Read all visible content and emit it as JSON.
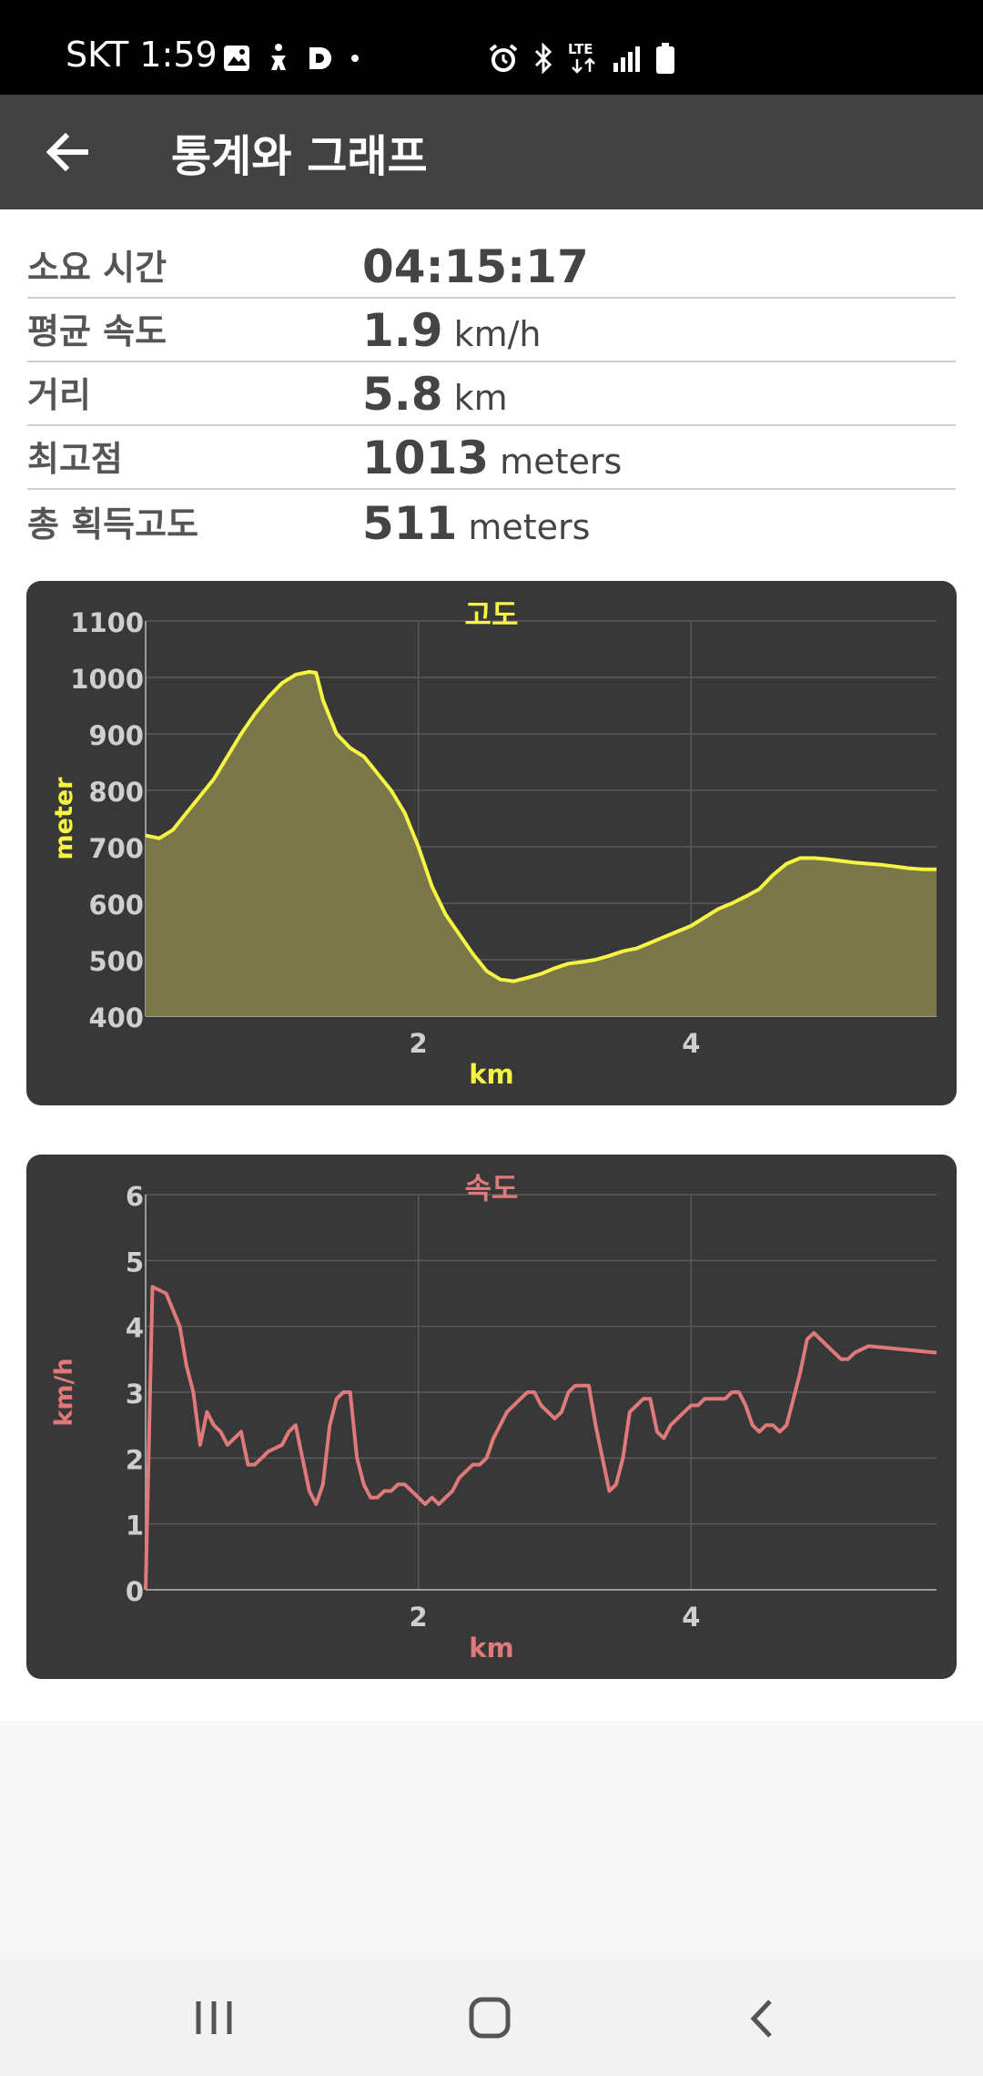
{
  "status_bar": {
    "time": "SKT 1:59",
    "lte": "LTE"
  },
  "app_bar": {
    "title": "통계와 그래프"
  },
  "stats": [
    {
      "label": "소요 시간",
      "value": "04:15:17",
      "unit": ""
    },
    {
      "label": "평균 속도",
      "value": "1.9",
      "unit": "km/h"
    },
    {
      "label": "거리",
      "value": "5.8",
      "unit": "km"
    },
    {
      "label": "최고점",
      "value": "1013",
      "unit": "meters"
    },
    {
      "label": "총 획득고도",
      "value": "511",
      "unit": "meters"
    }
  ],
  "chart_data": [
    {
      "type": "area",
      "title": "고도",
      "xlabel": "km",
      "ylabel": "meter",
      "xlim": [
        0,
        5.8
      ],
      "ylim": [
        400,
        1100
      ],
      "xticks": [
        2,
        4
      ],
      "yticks": [
        400,
        500,
        600,
        700,
        800,
        900,
        1000,
        1100
      ],
      "grid": true,
      "line_color": "#f5f542",
      "fill_color": "#7a774a",
      "x": [
        0,
        0.1,
        0.2,
        0.3,
        0.4,
        0.5,
        0.6,
        0.7,
        0.8,
        0.9,
        1.0,
        1.1,
        1.2,
        1.25,
        1.3,
        1.4,
        1.5,
        1.6,
        1.7,
        1.8,
        1.9,
        2.0,
        2.1,
        2.2,
        2.3,
        2.4,
        2.5,
        2.6,
        2.7,
        2.8,
        2.9,
        3.0,
        3.1,
        3.2,
        3.3,
        3.4,
        3.5,
        3.6,
        3.7,
        3.8,
        3.9,
        4.0,
        4.1,
        4.2,
        4.3,
        4.4,
        4.5,
        4.6,
        4.7,
        4.8,
        4.9,
        5.0,
        5.1,
        5.2,
        5.3,
        5.4,
        5.5,
        5.6,
        5.7,
        5.8
      ],
      "values": [
        720,
        715,
        730,
        760,
        790,
        820,
        860,
        900,
        935,
        965,
        990,
        1005,
        1010,
        1008,
        960,
        900,
        875,
        860,
        830,
        800,
        760,
        700,
        630,
        580,
        545,
        510,
        480,
        465,
        462,
        468,
        475,
        485,
        493,
        496,
        500,
        507,
        515,
        520,
        530,
        540,
        550,
        560,
        575,
        590,
        600,
        612,
        625,
        650,
        670,
        680,
        680,
        678,
        675,
        672,
        670,
        668,
        665,
        662,
        660,
        660
      ]
    },
    {
      "type": "line",
      "title": "속도",
      "xlabel": "km",
      "ylabel": "km/h",
      "xlim": [
        0,
        5.8
      ],
      "ylim": [
        0,
        6
      ],
      "xticks": [
        2,
        4
      ],
      "yticks": [
        0,
        1,
        2,
        3,
        4,
        5,
        6
      ],
      "grid": true,
      "line_color": "#e07a7a",
      "x": [
        0,
        0.05,
        0.15,
        0.25,
        0.3,
        0.35,
        0.4,
        0.45,
        0.5,
        0.55,
        0.6,
        0.7,
        0.75,
        0.8,
        0.85,
        0.9,
        1.0,
        1.05,
        1.1,
        1.15,
        1.2,
        1.25,
        1.3,
        1.35,
        1.4,
        1.45,
        1.5,
        1.55,
        1.6,
        1.65,
        1.7,
        1.75,
        1.8,
        1.85,
        1.9,
        1.95,
        2.0,
        2.05,
        2.1,
        2.15,
        2.2,
        2.25,
        2.3,
        2.35,
        2.4,
        2.45,
        2.5,
        2.55,
        2.6,
        2.65,
        2.7,
        2.75,
        2.8,
        2.85,
        2.9,
        3.0,
        3.05,
        3.1,
        3.15,
        3.2,
        3.25,
        3.3,
        3.35,
        3.4,
        3.45,
        3.5,
        3.55,
        3.6,
        3.65,
        3.7,
        3.75,
        3.8,
        3.85,
        3.9,
        3.95,
        4.0,
        4.05,
        4.1,
        4.15,
        4.2,
        4.25,
        4.3,
        4.35,
        4.4,
        4.45,
        4.5,
        4.55,
        4.6,
        4.65,
        4.7,
        4.75,
        4.8,
        4.85,
        4.9,
        4.95,
        5.0,
        5.05,
        5.1,
        5.15,
        5.2,
        5.3,
        5.8
      ],
      "values": [
        0,
        4.6,
        4.5,
        4.0,
        3.4,
        3.0,
        2.2,
        2.7,
        2.5,
        2.4,
        2.2,
        2.4,
        1.9,
        1.9,
        2.0,
        2.1,
        2.2,
        2.4,
        2.5,
        2.0,
        1.5,
        1.3,
        1.6,
        2.5,
        2.9,
        3.0,
        3.0,
        2.0,
        1.6,
        1.4,
        1.4,
        1.5,
        1.5,
        1.6,
        1.6,
        1.5,
        1.4,
        1.3,
        1.4,
        1.3,
        1.4,
        1.5,
        1.7,
        1.8,
        1.9,
        1.9,
        2.0,
        2.3,
        2.5,
        2.7,
        2.8,
        2.9,
        3.0,
        3.0,
        2.8,
        2.6,
        2.7,
        3.0,
        3.1,
        3.1,
        3.1,
        2.5,
        2.0,
        1.5,
        1.6,
        2.0,
        2.7,
        2.8,
        2.9,
        2.9,
        2.4,
        2.3,
        2.5,
        2.6,
        2.7,
        2.8,
        2.8,
        2.9,
        2.9,
        2.9,
        2.9,
        3.0,
        3.0,
        2.8,
        2.5,
        2.4,
        2.5,
        2.5,
        2.4,
        2.5,
        2.9,
        3.3,
        3.8,
        3.9,
        3.8,
        3.7,
        3.6,
        3.5,
        3.5,
        3.6,
        3.7,
        3.6
      ]
    }
  ]
}
